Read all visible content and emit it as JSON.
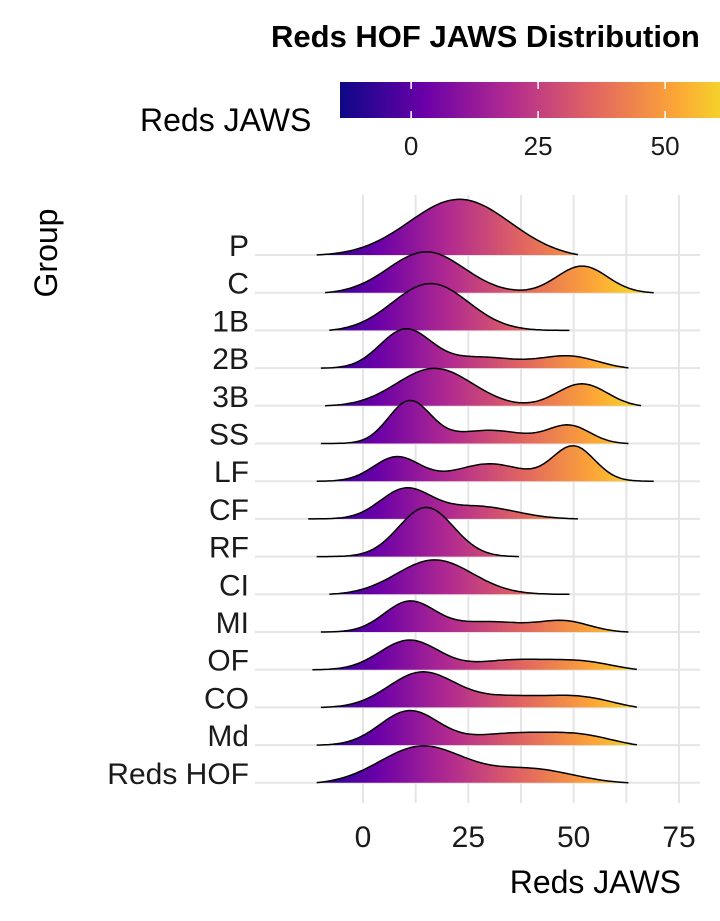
{
  "chart_data": {
    "type": "ridgeline",
    "title": "Reds HOF JAWS Distribution",
    "xlabel": "Reds JAWS",
    "ylabel": "Group",
    "xlim": [
      -14,
      78
    ],
    "x_ticks": [
      0,
      25,
      50,
      75
    ],
    "grid": true,
    "colorbar": {
      "title": "Reds JAWS",
      "palette": "plasma",
      "range": [
        -14,
        60
      ],
      "ticks": [
        0,
        25,
        50
      ],
      "colors": [
        "#0d0887",
        "#6a00a8",
        "#b12a90",
        "#e16462",
        "#fca636",
        "#f0f921"
      ]
    },
    "groups": [
      {
        "label": "P",
        "min": -11,
        "max": 51,
        "peaks": [
          [
            23,
            12,
            1.0
          ]
        ]
      },
      {
        "label": "C",
        "min": -9,
        "max": 69,
        "peaks": [
          [
            15,
            9,
            0.72
          ],
          [
            52,
            6,
            0.47
          ]
        ]
      },
      {
        "label": "1B",
        "min": -8,
        "max": 49,
        "peaks": [
          [
            16,
            9,
            0.82
          ]
        ]
      },
      {
        "label": "2B",
        "min": -10,
        "max": 63,
        "peaks": [
          [
            10,
            6,
            0.66
          ],
          [
            28,
            9,
            0.2
          ],
          [
            49,
            7,
            0.22
          ]
        ]
      },
      {
        "label": "3B",
        "min": -9,
        "max": 66,
        "peaks": [
          [
            17,
            9,
            0.66
          ],
          [
            52,
            6,
            0.4
          ]
        ]
      },
      {
        "label": "SS",
        "min": -10,
        "max": 63,
        "peaks": [
          [
            11,
            5,
            0.72
          ],
          [
            30,
            9,
            0.23
          ],
          [
            49,
            5,
            0.3
          ]
        ]
      },
      {
        "label": "LF",
        "min": -11,
        "max": 69,
        "peaks": [
          [
            8,
            5.5,
            0.42
          ],
          [
            30,
            8,
            0.3
          ],
          [
            50,
            5,
            0.6
          ]
        ]
      },
      {
        "label": "CF",
        "min": -13,
        "max": 51,
        "peaks": [
          [
            10,
            6,
            0.5
          ],
          [
            27,
            9,
            0.22
          ]
        ]
      },
      {
        "label": "RF",
        "min": -11,
        "max": 37,
        "peaks": [
          [
            15,
            6.5,
            0.85
          ]
        ]
      },
      {
        "label": "CI",
        "min": -8,
        "max": 49,
        "peaks": [
          [
            17,
            9,
            0.6
          ]
        ]
      },
      {
        "label": "MI",
        "min": -10,
        "max": 63,
        "peaks": [
          [
            11,
            6,
            0.52
          ],
          [
            30,
            9,
            0.18
          ],
          [
            48,
            6,
            0.18
          ]
        ]
      },
      {
        "label": "OF",
        "min": -12,
        "max": 65,
        "peaks": [
          [
            11,
            7,
            0.52
          ],
          [
            35,
            9,
            0.18
          ],
          [
            52,
            8,
            0.16
          ]
        ]
      },
      {
        "label": "CO",
        "min": -10,
        "max": 65,
        "peaks": [
          [
            14,
            8,
            0.62
          ],
          [
            35,
            9,
            0.2
          ],
          [
            52,
            8,
            0.2
          ]
        ]
      },
      {
        "label": "Md",
        "min": -11,
        "max": 65,
        "peaks": [
          [
            11,
            7,
            0.6
          ],
          [
            35,
            10,
            0.22
          ],
          [
            52,
            8,
            0.18
          ]
        ]
      },
      {
        "label": "Reds HOF",
        "min": -11,
        "max": 63,
        "peaks": [
          [
            14,
            10,
            0.65
          ],
          [
            40,
            10,
            0.25
          ]
        ]
      }
    ]
  }
}
